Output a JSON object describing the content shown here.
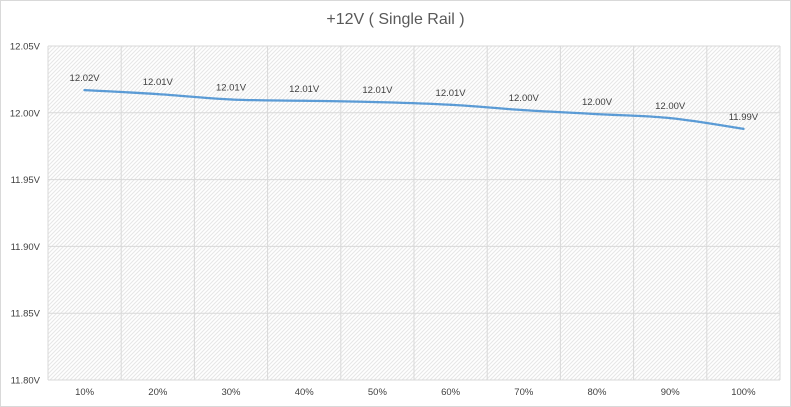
{
  "chart_data": {
    "type": "line",
    "title": "+12V ( Single Rail )",
    "xlabel": "",
    "ylabel": "",
    "categories": [
      "10%",
      "20%",
      "30%",
      "40%",
      "50%",
      "60%",
      "70%",
      "80%",
      "90%",
      "100%"
    ],
    "series": [
      {
        "values": [
          12.017,
          12.014,
          12.01,
          12.009,
          12.008,
          12.006,
          12.002,
          11.999,
          11.996,
          11.988
        ],
        "labels": [
          "12.02V",
          "12.01V",
          "12.01V",
          "12.01V",
          "12.01V",
          "12.01V",
          "12.00V",
          "12.00V",
          "12.00V",
          "11.99V"
        ],
        "color": "#5b9bd5"
      }
    ],
    "ylim": [
      11.8,
      12.05
    ],
    "yticks": [
      "11.80V",
      "11.85V",
      "11.90V",
      "11.95V",
      "12.00V",
      "12.05V"
    ],
    "grid": true,
    "legend": "none",
    "grid_color": "#d9d9d9",
    "plot_fill": "hatched-light-gray"
  }
}
